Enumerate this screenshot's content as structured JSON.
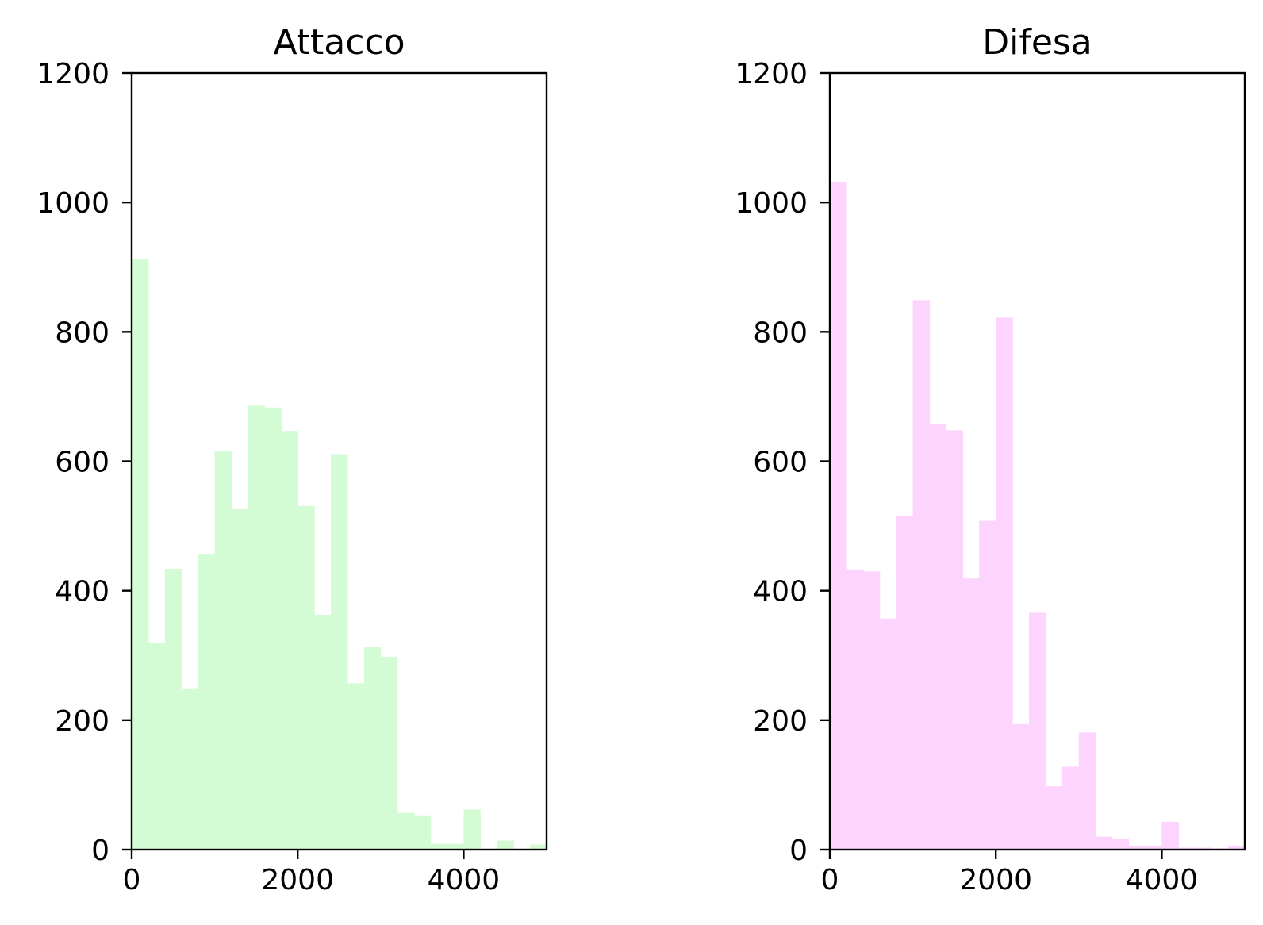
{
  "chart_data": [
    {
      "type": "bar",
      "title": "Attacco",
      "xlabel": "",
      "ylabel": "",
      "color": "#d4fcd4",
      "xlim": [
        0,
        5000
      ],
      "ylim": [
        0,
        1200
      ],
      "xticks": [
        "0",
        "2000",
        "4000"
      ],
      "yticks": [
        "0",
        "200",
        "400",
        "600",
        "800",
        "1000",
        "1200"
      ],
      "bin_width": 200,
      "bin_starts": [
        0,
        200,
        400,
        600,
        800,
        1000,
        1200,
        1400,
        1600,
        1800,
        2000,
        2200,
        2400,
        2600,
        2800,
        3000,
        3200,
        3400,
        3600,
        3800,
        4000,
        4200,
        4400,
        4600,
        4800
      ],
      "values": [
        912,
        320,
        434,
        249,
        457,
        616,
        527,
        686,
        683,
        647,
        531,
        363,
        611,
        257,
        313,
        298,
        57,
        53,
        9,
        9,
        62,
        0,
        14,
        0,
        8
      ],
      "grid": false,
      "legend": "none"
    },
    {
      "type": "bar",
      "title": "Difesa",
      "xlabel": "",
      "ylabel": "",
      "color": "#fdd4fd",
      "xlim": [
        0,
        5000
      ],
      "ylim": [
        0,
        1200
      ],
      "xticks": [
        "0",
        "2000",
        "4000"
      ],
      "yticks": [
        "0",
        "200",
        "400",
        "600",
        "800",
        "1000",
        "1200"
      ],
      "bin_width": 200,
      "bin_starts": [
        0,
        200,
        400,
        600,
        800,
        1000,
        1200,
        1400,
        1600,
        1800,
        2000,
        2200,
        2400,
        2600,
        2800,
        3000,
        3200,
        3400,
        3600,
        3800,
        4000,
        4200,
        4400,
        4600,
        4800
      ],
      "values": [
        1032,
        433,
        430,
        357,
        515,
        849,
        657,
        648,
        419,
        508,
        822,
        194,
        366,
        98,
        128,
        181,
        20,
        17,
        5,
        6,
        43,
        3,
        3,
        2,
        6
      ],
      "grid": false,
      "legend": "none"
    }
  ]
}
